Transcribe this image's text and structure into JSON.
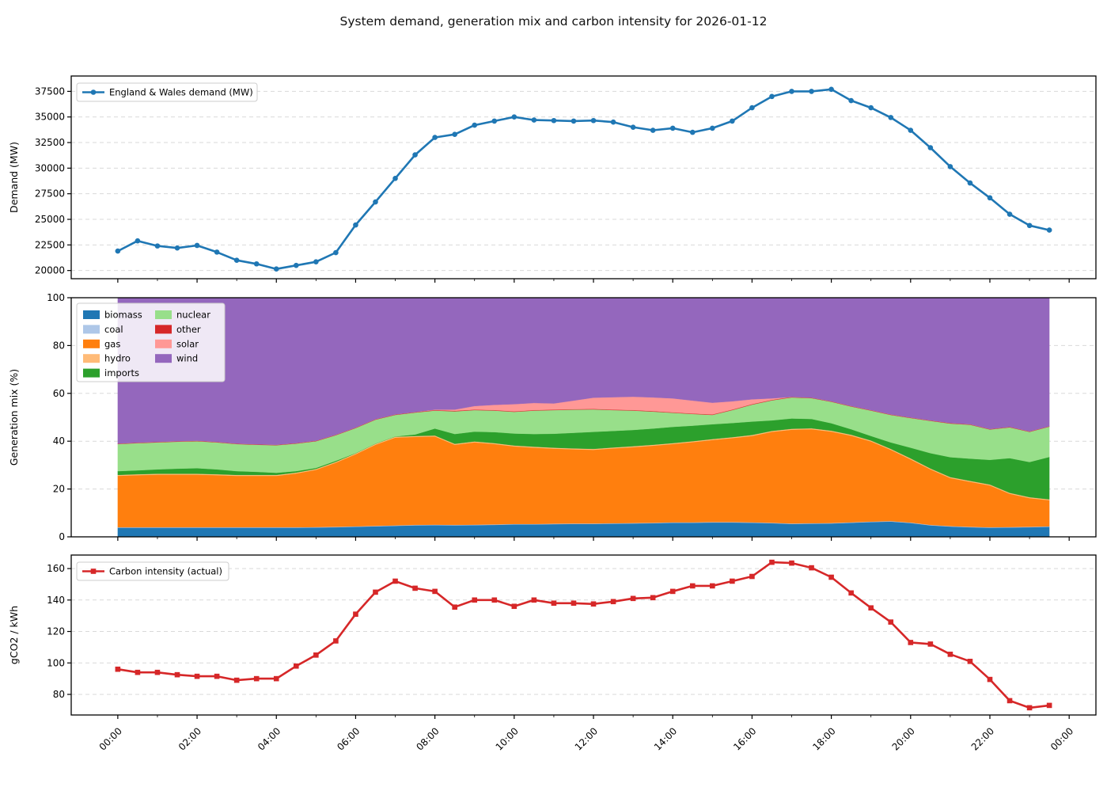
{
  "title": "System demand, generation mix and carbon intensity for 2026-01-12",
  "x_axis": {
    "times": [
      0,
      0.5,
      1,
      1.5,
      2,
      2.5,
      3,
      3.5,
      4,
      4.5,
      5,
      5.5,
      6,
      6.5,
      7,
      7.5,
      8,
      8.5,
      9,
      9.5,
      10,
      10.5,
      11,
      11.5,
      12,
      12.5,
      13,
      13.5,
      14,
      14.5,
      15,
      15.5,
      16,
      16.5,
      17,
      17.5,
      18,
      18.5,
      19,
      19.5,
      20,
      20.5,
      21,
      21.5,
      22,
      22.5,
      23,
      23.5
    ],
    "tick_hours": [
      0,
      2,
      4,
      6,
      8,
      10,
      12,
      14,
      16,
      18,
      20,
      22,
      24
    ],
    "tick_labels": [
      "00:00",
      "02:00",
      "04:00",
      "06:00",
      "08:00",
      "10:00",
      "12:00",
      "14:00",
      "16:00",
      "18:00",
      "20:00",
      "22:00",
      "00:00"
    ],
    "xlim": [
      -1.175,
      24.675
    ]
  },
  "chart_data": [
    {
      "id": "demand",
      "type": "line",
      "legend": "England & Wales demand (MW)",
      "ylabel": "Demand (MW)",
      "yticks": [
        20000,
        22500,
        25000,
        27500,
        30000,
        32500,
        35000,
        37500
      ],
      "ylim": [
        19200,
        39000
      ],
      "color": "#1f77b4",
      "marker": "circle",
      "values": [
        21900,
        22900,
        22400,
        22200,
        22450,
        21800,
        21000,
        20650,
        20150,
        20500,
        20850,
        21750,
        24450,
        26700,
        29000,
        31300,
        33000,
        33300,
        34200,
        34600,
        35000,
        34700,
        34650,
        34600,
        34650,
        34500,
        34000,
        33700,
        33900,
        33500,
        33900,
        34600,
        35900,
        37000,
        37500,
        37500,
        37700,
        36600,
        35900,
        34950,
        33700,
        32000,
        30150,
        28550,
        27100,
        25500,
        24400,
        23950
      ]
    },
    {
      "id": "generation-mix",
      "type": "area",
      "ylabel": "Generation mix (%)",
      "yticks": [
        0,
        20,
        40,
        60,
        80,
        100
      ],
      "ylim": [
        0,
        100
      ],
      "legend_columns": 2,
      "series": [
        {
          "name": "biomass",
          "color": "#1f77b4",
          "values": [
            3.8,
            3.8,
            3.8,
            3.8,
            3.8,
            3.8,
            3.8,
            3.8,
            3.8,
            3.8,
            3.9,
            4.0,
            4.2,
            4.4,
            4.6,
            4.8,
            4.9,
            4.8,
            4.9,
            5.0,
            5.2,
            5.2,
            5.3,
            5.4,
            5.4,
            5.5,
            5.6,
            5.7,
            5.9,
            5.9,
            6.0,
            6.0,
            5.9,
            5.7,
            5.4,
            5.5,
            5.6,
            5.9,
            6.2,
            6.4,
            5.8,
            4.8,
            4.3,
            4.0,
            3.8,
            3.9,
            4.0,
            4.2
          ]
        },
        {
          "name": "coal",
          "color": "#aec7e8",
          "values": [
            0.2,
            0.2,
            0.2,
            0.2,
            0.2,
            0.2,
            0.2,
            0.2,
            0.2,
            0.2,
            0.2,
            0.2,
            0.2,
            0.2,
            0.2,
            0.2,
            0.2,
            0.2,
            0.2,
            0.2,
            0.2,
            0.2,
            0.2,
            0.2,
            0.2,
            0.2,
            0.2,
            0.2,
            0.2,
            0.2,
            0.2,
            0.2,
            0.2,
            0.2,
            0.2,
            0.2,
            0.2,
            0.2,
            0.2,
            0.2,
            0.2,
            0.2,
            0.2,
            0.2,
            0.2,
            0.2,
            0.2,
            0.2
          ]
        },
        {
          "name": "gas",
          "color": "#ff7f0e",
          "values": [
            21.5,
            21.8,
            22.0,
            22.0,
            22.0,
            21.8,
            21.5,
            21.5,
            21.5,
            22.5,
            23.9,
            26.8,
            30.1,
            33.9,
            36.7,
            36.8,
            36.9,
            33.5,
            34.4,
            33.6,
            32.4,
            31.9,
            31.4,
            31.0,
            30.8,
            31.3,
            31.7,
            32.2,
            32.7,
            33.5,
            34.3,
            35.1,
            36.1,
            38.0,
            39.2,
            39.3,
            38.2,
            36.2,
            33.5,
            29.8,
            26.4,
            23.2,
            20.1,
            18.8,
            17.5,
            13.9,
            12.0,
            10.9
          ]
        },
        {
          "name": "hydro",
          "color": "#ffbb78",
          "values": [
            0.4,
            0.4,
            0.4,
            0.4,
            0.4,
            0.4,
            0.4,
            0.4,
            0.4,
            0.4,
            0.4,
            0.4,
            0.4,
            0.4,
            0.4,
            0.4,
            0.4,
            0.4,
            0.4,
            0.4,
            0.4,
            0.4,
            0.4,
            0.4,
            0.4,
            0.4,
            0.4,
            0.4,
            0.4,
            0.4,
            0.4,
            0.4,
            0.4,
            0.4,
            0.4,
            0.4,
            0.4,
            0.4,
            0.4,
            0.4,
            0.4,
            0.4,
            0.4,
            0.4,
            0.4,
            0.4,
            0.4,
            0.4
          ]
        },
        {
          "name": "imports",
          "color": "#2ca02c",
          "values": [
            1.6,
            1.6,
            1.8,
            2.1,
            2.3,
            2.0,
            1.6,
            1.3,
            0.9,
            0.6,
            0.4,
            0.4,
            0.1,
            0.1,
            0.1,
            0.6,
            2.9,
            4.1,
            4.1,
            4.6,
            5.0,
            5.3,
            5.8,
            6.5,
            7.1,
            6.9,
            6.8,
            6.8,
            6.8,
            6.5,
            6.2,
            5.9,
            5.6,
            4.4,
            4.3,
            3.9,
            3.1,
            2.3,
            1.9,
            2.7,
            4.5,
            6.4,
            8.3,
            9.3,
            10.3,
            14.5,
            14.7,
            17.7
          ]
        },
        {
          "name": "nuclear",
          "color": "#98df8a",
          "values": [
            11.3,
            11.4,
            11.3,
            11.3,
            11.3,
            11.3,
            11.3,
            11.3,
            11.5,
            11.5,
            11.2,
            10.7,
            10.5,
            10.0,
            9.0,
            9.2,
            7.5,
            9.5,
            9.0,
            9.0,
            9.1,
            9.8,
            9.9,
            9.7,
            9.4,
            8.7,
            8.1,
            7.1,
            5.9,
            4.9,
            3.9,
            5.4,
            7.1,
            8.4,
            8.8,
            8.7,
            9.0,
            9.5,
            10.6,
            11.5,
            12.4,
            13.5,
            14.1,
            14.2,
            12.7,
            12.9,
            12.6,
            12.7
          ]
        },
        {
          "name": "other",
          "color": "#d62728",
          "values": [
            0.2,
            0.2,
            0.2,
            0.2,
            0.2,
            0.2,
            0.2,
            0.2,
            0.2,
            0.2,
            0.2,
            0.2,
            0.2,
            0.2,
            0.2,
            0.2,
            0.2,
            0.2,
            0.2,
            0.2,
            0.2,
            0.2,
            0.2,
            0.2,
            0.2,
            0.2,
            0.2,
            0.2,
            0.2,
            0.2,
            0.2,
            0.2,
            0.2,
            0.2,
            0.2,
            0.2,
            0.2,
            0.2,
            0.2,
            0.2,
            0.2,
            0.2,
            0.2,
            0.2,
            0.2,
            0.2,
            0.2,
            0.2
          ]
        },
        {
          "name": "solar",
          "color": "#ff9896",
          "values": [
            0,
            0,
            0,
            0,
            0,
            0,
            0,
            0,
            0,
            0,
            0,
            0,
            0,
            0,
            0,
            0,
            0.2,
            0.5,
            1.5,
            2.2,
            3.0,
            3.0,
            2.6,
            3.6,
            4.7,
            5.2,
            5.6,
            5.7,
            5.8,
            5.4,
            4.9,
            3.5,
            2.0,
            0.6,
            0,
            0,
            0,
            0,
            0,
            0,
            0,
            0,
            0,
            0,
            0,
            0,
            0,
            0
          ]
        },
        {
          "name": "wind",
          "color": "#9467bd",
          "values": [
            61.0,
            60.6,
            60.3,
            60.0,
            59.8,
            60.3,
            61.0,
            61.3,
            61.5,
            60.8,
            59.8,
            57.3,
            54.3,
            50.8,
            48.8,
            47.8,
            46.8,
            46.8,
            45.3,
            44.8,
            44.5,
            44.0,
            44.2,
            43.0,
            41.8,
            41.6,
            41.4,
            41.7,
            42.1,
            43.0,
            43.9,
            43.3,
            42.5,
            42.1,
            41.5,
            41.8,
            43.3,
            45.3,
            47.0,
            48.8,
            50.1,
            51.3,
            52.4,
            52.9,
            54.9,
            54.0,
            55.9,
            53.7
          ]
        }
      ]
    },
    {
      "id": "carbon-intensity",
      "type": "line",
      "legend": "Carbon intensity (actual)",
      "ylabel": "gCO2 / kWh",
      "yticks": [
        80,
        100,
        120,
        140,
        160
      ],
      "ylim": [
        66.9,
        168.6
      ],
      "color": "#d62728",
      "marker": "square",
      "values": [
        96,
        94,
        94,
        92.5,
        91.5,
        91.5,
        89,
        90,
        90,
        98,
        105,
        114,
        131,
        145,
        152,
        147.5,
        145.5,
        135.5,
        140,
        140,
        136,
        140,
        138,
        138,
        137.5,
        139,
        141,
        141.5,
        145.5,
        149,
        149,
        152,
        155,
        164,
        163.5,
        160.5,
        154.5,
        144.5,
        135,
        126,
        113,
        112,
        105.5,
        101,
        89.5,
        76,
        71.5,
        73
      ]
    }
  ]
}
